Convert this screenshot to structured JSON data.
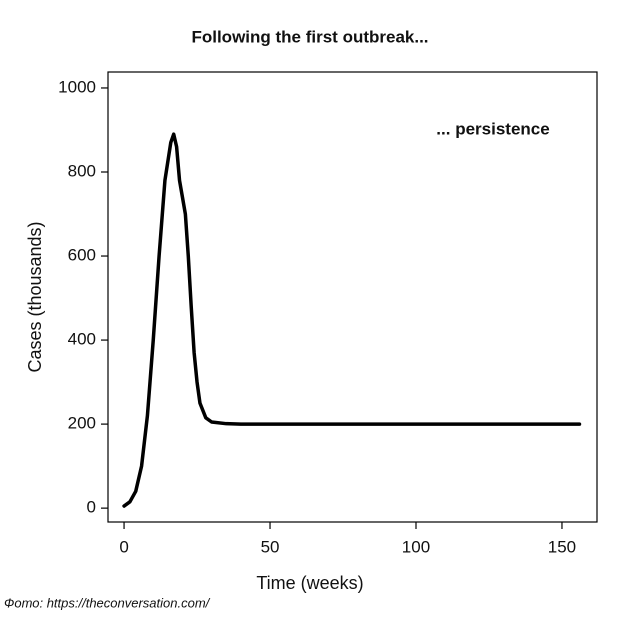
{
  "chart_data": {
    "type": "line",
    "title": "Following the first outbreak...",
    "annotation": "... persistence",
    "x_label": "Time (weeks)",
    "y_label": "Cases (thousands)",
    "credit": "Фото: https://theconversation.com/",
    "x": [
      0,
      2,
      4,
      6,
      8,
      10,
      12,
      14,
      16,
      17,
      18,
      19,
      20,
      21,
      22,
      23,
      24,
      25,
      26,
      28,
      30,
      35,
      40,
      50,
      100,
      156
    ],
    "series": [
      {
        "name": "Cases",
        "color": "#000000",
        "values": [
          5,
          15,
          40,
          100,
          220,
          400,
          600,
          780,
          870,
          890,
          860,
          780,
          740,
          700,
          600,
          480,
          370,
          300,
          250,
          215,
          205,
          201,
          200,
          200,
          200,
          200
        ]
      }
    ],
    "xlim": [
      -5.5,
      162
    ],
    "ylim": [
      -33,
      1038
    ],
    "xticks": [
      0,
      50,
      100,
      150
    ],
    "yticks": [
      0,
      200,
      400,
      600,
      800,
      1000
    ],
    "grid": false
  }
}
